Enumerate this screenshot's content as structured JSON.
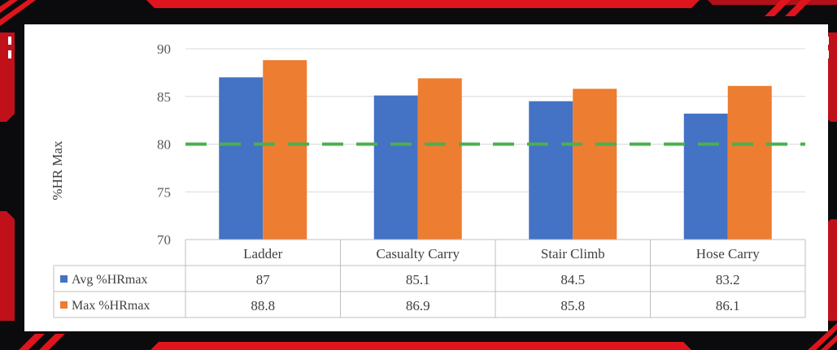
{
  "theme": {
    "frame_bg": "#0b0b0d",
    "frame_accent": "#e0141c",
    "panel_bg": "#ffffff",
    "grid_color": "#d9d9d9",
    "threshold_color": "#4caf50"
  },
  "chart_data": {
    "type": "bar",
    "title": "",
    "xlabel": "",
    "ylabel": "%HR Max",
    "ylim": [
      70,
      90
    ],
    "yticks": [
      70,
      75,
      80,
      85,
      90
    ],
    "categories": [
      "Ladder",
      "Casualty Carry",
      "Stair Climb",
      "Hose Carry"
    ],
    "series": [
      {
        "name": "Avg %HRmax",
        "color": "#4472c4",
        "values": [
          87,
          85.1,
          84.5,
          83.2
        ]
      },
      {
        "name": "Max %HRmax",
        "color": "#ed7d31",
        "values": [
          88.8,
          86.9,
          85.8,
          86.1
        ]
      }
    ],
    "threshold": {
      "value": 80,
      "style": "dashed",
      "color": "#4caf50"
    },
    "grid": true,
    "data_table": true,
    "legend": "in-table"
  }
}
